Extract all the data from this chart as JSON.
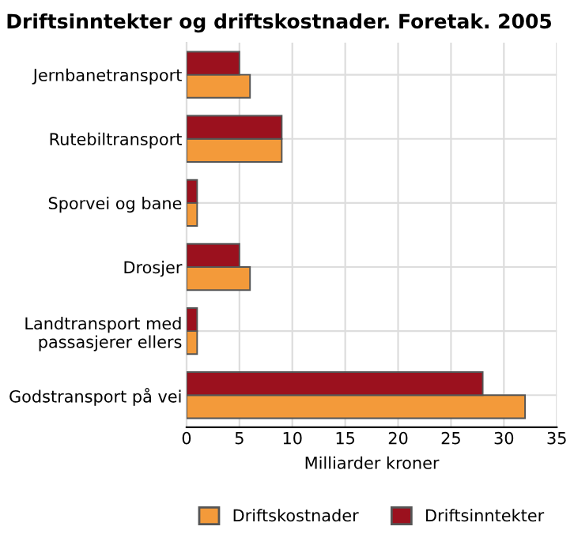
{
  "chart_data": {
    "type": "bar",
    "orientation": "horizontal",
    "title": "Driftsinntekter og driftskostnader. Foretak. 2005",
    "xlabel": "Milliarder kroner",
    "categories": [
      "Jernbanetransport",
      "Rutebiltransport",
      "Sporvei og bane",
      "Drosjer",
      "Landtransport med\npassasjerer ellers",
      "Godstransport på vei"
    ],
    "series": [
      {
        "name": "Driftskostnader",
        "color": "#f39a3a",
        "values": [
          6,
          9,
          1,
          6,
          1,
          32
        ]
      },
      {
        "name": "Driftsinntekter",
        "color": "#9b111e",
        "values": [
          5,
          9,
          1,
          5,
          1,
          28
        ]
      }
    ],
    "xlim": [
      0,
      35
    ],
    "xticks": [
      0,
      5,
      10,
      15,
      20,
      25,
      30,
      35
    ],
    "grid": true,
    "legend": "bottom"
  }
}
